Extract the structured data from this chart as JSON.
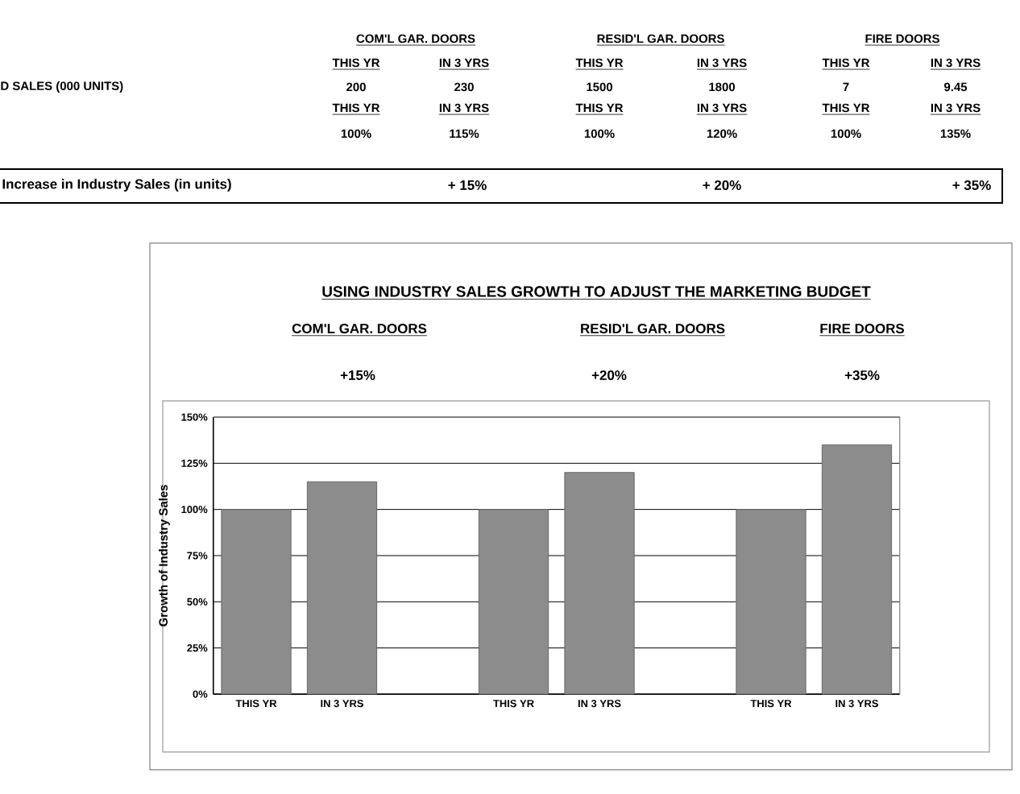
{
  "chart_data": {
    "type": "bar",
    "title": "USING INDUSTRY SALES GROWTH TO ADJUST THE MARKETING BUDGET",
    "ylabel": "Growth of Industry Sales",
    "categories": [
      "THIS YR",
      "IN 3 YRS",
      null,
      "THIS YR",
      "IN 3 YRS",
      null,
      "THIS YR",
      "IN 3 YRS"
    ],
    "values": [
      100,
      115,
      null,
      100,
      120,
      null,
      100,
      135
    ],
    "color": "#8c8c8c",
    "ylim": [
      0,
      150
    ],
    "yticks": [
      {
        "value": 0,
        "label": "0%"
      },
      {
        "value": 25,
        "label": "25%"
      },
      {
        "value": 50,
        "label": "50%"
      },
      {
        "value": 75,
        "label": "75%"
      },
      {
        "value": 100,
        "label": "100%"
      },
      {
        "value": 125,
        "label": "125%"
      },
      {
        "value": 150,
        "label": "150%"
      }
    ],
    "grid": "y",
    "annotations": [
      "COM'L GAR. DOORS",
      "RESID'L GAR. DOORS",
      "FIRE DOORS",
      "THIS YR",
      "IN 3 YRS",
      "THIS YR",
      "IN 3 YRS",
      "THIS YR",
      "IN 3 YRS",
      "D SALES (000 UNITS)",
      "200",
      "230",
      "1500",
      "1800",
      "7",
      "9.45",
      "THIS YR",
      "IN 3 YRS",
      "THIS YR",
      "IN 3 YRS",
      "THIS YR",
      "IN 3 YRS",
      "100%",
      "115%",
      "100%",
      "120%",
      "100%",
      "135%",
      "Increase in Industry Sales (in units)",
      "+ 15%",
      "+ 20%",
      "+ 35%",
      "COM'L GAR. DOORS",
      "RESID'L GAR. DOORS",
      "FIRE DOORS",
      "+15%",
      "+20%",
      "+35%"
    ]
  }
}
